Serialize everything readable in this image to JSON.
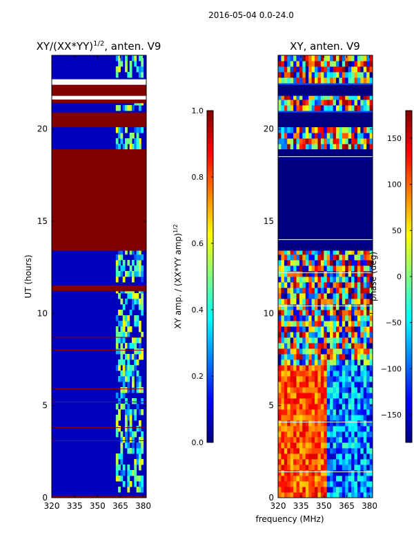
{
  "figure": {
    "suptitle": "2016-05-04 0.0-24.0"
  },
  "chart_data": [
    {
      "type": "heatmap",
      "title": "XY/(XX*YY)^1/2, anten. V9",
      "title_main": "XY/(XX*YY)",
      "title_exp": "1/2",
      "title_rest": ", anten. V9",
      "xlabel": "",
      "ylabel": "UT (hours)",
      "xlim": [
        320,
        382
      ],
      "ylim": [
        0,
        24
      ],
      "xticks": [
        320,
        335,
        350,
        365,
        380
      ],
      "yticks": [
        0,
        5,
        10,
        15,
        20
      ],
      "colormap": "jet",
      "colorbar": {
        "label": "XY amp. / (XX*YY amp)^1/2",
        "label_main": "XY amp. / (XX*YY amp)",
        "label_exp": "1/2",
        "range": [
          0.0,
          1.0
        ],
        "ticks": [
          "0.0",
          "0.2",
          "0.4",
          "0.6",
          "0.8",
          "1.0"
        ],
        "tick_values": [
          0.0,
          0.2,
          0.4,
          0.6,
          0.8,
          1.0
        ]
      },
      "background_value": 0.06,
      "saturated_bands_hours": [
        [
          0,
          0.1
        ],
        [
          13.4,
          18.9
        ],
        [
          20.1,
          20.9
        ],
        [
          21.4,
          21.6
        ],
        [
          21.8,
          22.4
        ],
        [
          11.2,
          11.5
        ]
      ],
      "empty_bands_hours": [
        [
          22.4,
          22.7
        ],
        [
          21.6,
          21.8
        ]
      ],
      "high_amplitude_freq_range_MHz": [
        362,
        380
      ],
      "description_values": "low amplitude (~0.05-0.15) below 360 MHz, patchy 0.3-0.6 above 362 MHz"
    },
    {
      "type": "heatmap",
      "title": "XY, anten. V9",
      "xlabel": "frequency (MHz)",
      "ylabel": "",
      "xlim": [
        320,
        382
      ],
      "ylim": [
        0,
        24
      ],
      "xticks": [
        320,
        335,
        350,
        365,
        380
      ],
      "yticks": [
        0,
        5,
        10,
        15,
        20
      ],
      "colormap": "jet",
      "colorbar": {
        "label": "phase (deg)",
        "range": [
          -180,
          180
        ],
        "ticks": [
          "−150",
          "−100",
          "−50",
          "0",
          "50",
          "100",
          "150"
        ],
        "tick_values": [
          -150,
          -100,
          -50,
          0,
          50,
          100,
          150
        ]
      },
      "constant_phase_bands_hours": [
        [
          13.4,
          18.9
        ],
        [
          20.1,
          20.9
        ],
        [
          21.8,
          22.4
        ]
      ],
      "constant_phase_value_deg": -180,
      "warm_band_freq_range_MHz": [
        320,
        352
      ],
      "warm_phase_deg": 150
    }
  ]
}
